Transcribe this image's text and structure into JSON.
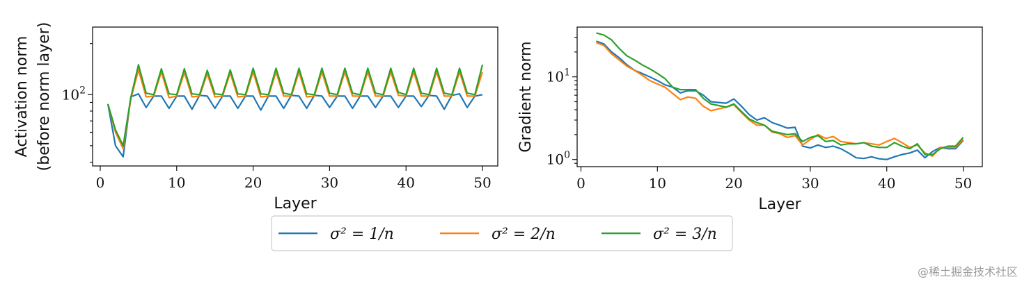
{
  "chart_data": [
    {
      "type": "line",
      "xlabel": "Layer",
      "ylabel_lines": [
        "Activation norm",
        "(before norm layer)"
      ],
      "yscale": "log",
      "xlim": [
        -1,
        52
      ],
      "ylim": [
        38,
        250
      ],
      "xticks": [
        0,
        10,
        20,
        30,
        40,
        50
      ],
      "yticks": [
        {
          "value": 100,
          "base": "10",
          "exp": "2"
        }
      ],
      "x": [
        1,
        2,
        3,
        4,
        5,
        6,
        7,
        8,
        9,
        10,
        11,
        12,
        13,
        14,
        15,
        16,
        17,
        18,
        19,
        20,
        21,
        22,
        23,
        24,
        25,
        26,
        27,
        28,
        29,
        30,
        31,
        32,
        33,
        34,
        35,
        36,
        37,
        38,
        39,
        40,
        41,
        42,
        43,
        44,
        45,
        46,
        47,
        48,
        49,
        50
      ],
      "series": [
        {
          "name": "σ² = 1/n",
          "color": "#1f77b4",
          "values": [
            88,
            50,
            43,
            97,
            101,
            84,
            98,
            98,
            83,
            98,
            98,
            82,
            99,
            98,
            83,
            98,
            98,
            83,
            98,
            98,
            81,
            98,
            98,
            83,
            99,
            98,
            83,
            99,
            98,
            84,
            98,
            98,
            83,
            98,
            98,
            84,
            98,
            98,
            84,
            98,
            98,
            85,
            99,
            98,
            82,
            99,
            101,
            84,
            98,
            100
          ]
        },
        {
          "name": "σ² = 2/n",
          "color": "#ff7f0e",
          "values": [
            88,
            60,
            48,
            94,
            140,
            97,
            98,
            136,
            96,
            98,
            135,
            97,
            98,
            133,
            97,
            98,
            134,
            97,
            98,
            136,
            97,
            98,
            136,
            98,
            98,
            136,
            97,
            98,
            136,
            98,
            98,
            136,
            98,
            98,
            136,
            98,
            98,
            136,
            99,
            98,
            136,
            98,
            98,
            136,
            98,
            98,
            136,
            98,
            98,
            136
          ]
        },
        {
          "name": "σ² = 3/n",
          "color": "#2ca02c",
          "values": [
            88,
            62,
            50,
            96,
            150,
            102,
            100,
            142,
            101,
            100,
            142,
            101,
            100,
            139,
            101,
            100,
            140,
            101,
            100,
            143,
            101,
            100,
            143,
            102,
            100,
            143,
            101,
            100,
            143,
            102,
            100,
            143,
            102,
            100,
            143,
            102,
            100,
            143,
            103,
            100,
            143,
            102,
            100,
            143,
            102,
            100,
            143,
            102,
            100,
            150
          ]
        }
      ]
    },
    {
      "type": "line",
      "xlabel": "Layer",
      "ylabel_lines": [
        "Gradient norm"
      ],
      "yscale": "log",
      "xlim": [
        -0.5,
        52.5
      ],
      "ylim": [
        0.82,
        40
      ],
      "xticks": [
        0,
        10,
        20,
        30,
        40,
        50
      ],
      "yticks": [
        {
          "value": 1,
          "base": "10",
          "exp": "0"
        },
        {
          "value": 10,
          "base": "10",
          "exp": "1"
        }
      ],
      "x": [
        2,
        3,
        4,
        5,
        6,
        7,
        8,
        9,
        10,
        11,
        12,
        13,
        14,
        15,
        16,
        17,
        18,
        19,
        20,
        21,
        22,
        23,
        24,
        25,
        26,
        27,
        28,
        29,
        30,
        31,
        32,
        33,
        34,
        35,
        36,
        37,
        38,
        39,
        40,
        41,
        42,
        43,
        44,
        45,
        46,
        47,
        48,
        49,
        50
      ],
      "series": [
        {
          "name": "σ² = 1/n",
          "color": "#1f77b4",
          "values": [
            27,
            25,
            20,
            17,
            14,
            12,
            11,
            10,
            9,
            8,
            7.5,
            6.4,
            6.8,
            6.8,
            6,
            5,
            4.9,
            4.8,
            5.4,
            4.4,
            3.5,
            3,
            3.2,
            2.8,
            2.6,
            2.4,
            2.45,
            1.45,
            1.38,
            1.5,
            1.4,
            1.45,
            1.35,
            1.2,
            1.05,
            1.03,
            1.08,
            1.02,
            1.0,
            1.08,
            1.15,
            1.2,
            1.3,
            1.05,
            1.25,
            1.4,
            1.35,
            1.35,
            1.7
          ]
        },
        {
          "name": "σ² = 2/n",
          "color": "#ff7f0e",
          "values": [
            26,
            24,
            19,
            16,
            13.5,
            12,
            10.5,
            9,
            8.2,
            7.5,
            6.3,
            5.3,
            5.7,
            5.5,
            4.4,
            3.9,
            4.1,
            4.3,
            4.6,
            3.7,
            3,
            2.6,
            2.6,
            2.15,
            2.05,
            1.85,
            1.95,
            1.5,
            1.75,
            2,
            1.8,
            1.9,
            1.65,
            1.6,
            1.55,
            1.6,
            1.55,
            1.5,
            1.65,
            1.8,
            1.6,
            1.4,
            1.5,
            1.2,
            1.1,
            1.4,
            1.4,
            1.4,
            1.75
          ]
        },
        {
          "name": "σ² = 3/n",
          "color": "#2ca02c",
          "values": [
            34,
            32,
            28,
            22,
            18,
            16,
            14,
            12.5,
            11,
            9.5,
            7.5,
            7,
            7,
            7,
            5.5,
            4.7,
            4.5,
            4.3,
            4.7,
            3.8,
            3.1,
            2.8,
            2.6,
            2.2,
            2.1,
            2,
            2.05,
            1.65,
            1.85,
            1.95,
            1.65,
            1.7,
            1.5,
            1.55,
            1.55,
            1.6,
            1.45,
            1.4,
            1.4,
            1.6,
            1.45,
            1.35,
            1.55,
            1.15,
            1.15,
            1.35,
            1.45,
            1.45,
            1.85
          ]
        }
      ]
    }
  ],
  "legend": {
    "placement": "bottom-center",
    "entries": [
      {
        "label": "σ² = 1/n",
        "color": "#1f77b4"
      },
      {
        "label": "σ² = 2/n",
        "color": "#ff7f0e"
      },
      {
        "label": "σ² = 3/n",
        "color": "#2ca02c"
      }
    ]
  },
  "watermark": "@稀土掘金技术社区"
}
